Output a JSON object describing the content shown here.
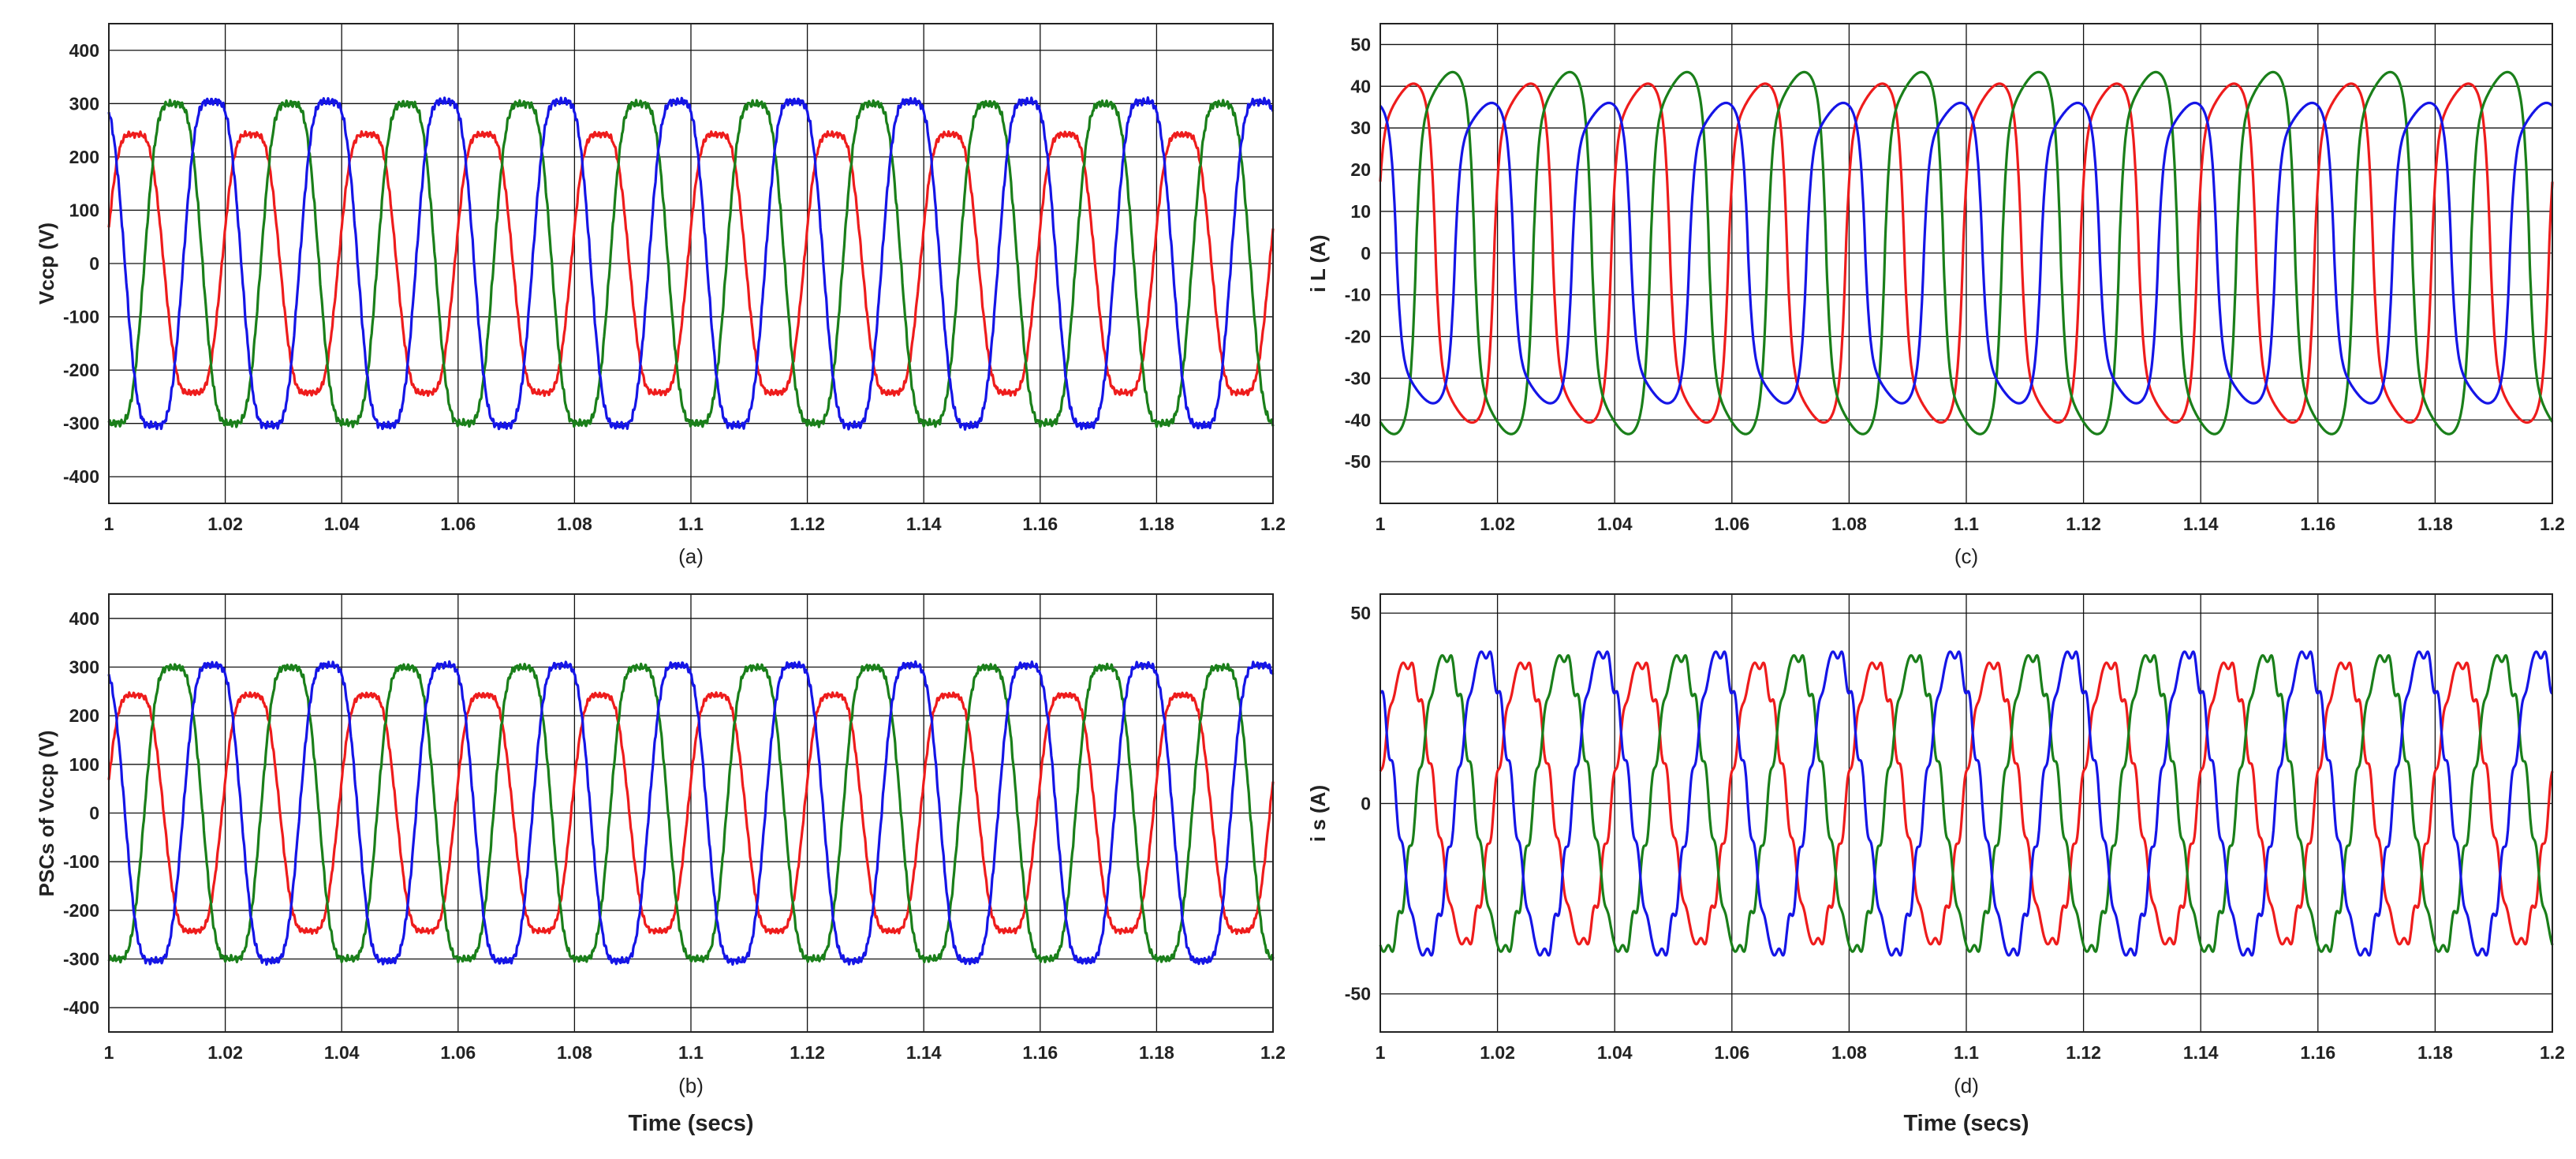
{
  "colors": {
    "phase_a": "#ee1c1c",
    "phase_b": "#1a7f1a",
    "phase_c": "#1515e6",
    "grid": "#111111",
    "axes": "#222222"
  },
  "chart_data": [
    {
      "id": "a",
      "type": "line",
      "caption": "(a)",
      "ylabel": "Vccp (V)",
      "xlabel": "",
      "xlim": [
        1,
        1.2
      ],
      "ylim": [
        -450,
        450
      ],
      "xticks": [
        1,
        1.02,
        1.04,
        1.06,
        1.08,
        1.1,
        1.12,
        1.14,
        1.16,
        1.18,
        1.2
      ],
      "xtick_labels": [
        "1",
        "1.02",
        "1.04",
        "1.06",
        "1.08",
        "1.1",
        "1.12",
        "1.14",
        "1.16",
        "1.18",
        "1.2"
      ],
      "yticks": [
        -400,
        -300,
        -200,
        -100,
        0,
        100,
        200,
        300,
        400
      ],
      "ytick_labels": [
        "-400",
        "-300",
        "-200",
        "-100",
        "0",
        "100",
        "200",
        "300",
        "400"
      ],
      "grid": true,
      "frequency_hz": 50,
      "waveform": "voltage",
      "series": [
        {
          "color": "#ee1c1c",
          "amplitude": 275,
          "phase_deg": 0
        },
        {
          "color": "#1a7f1a",
          "amplitude": 340,
          "phase_deg": -120
        },
        {
          "color": "#1515e6",
          "amplitude": 345,
          "phase_deg": 120
        }
      ]
    },
    {
      "id": "b",
      "type": "line",
      "caption": "(b)",
      "ylabel": "PSCs of Vccp (V)",
      "xlabel": "Time (secs)",
      "xlim": [
        1,
        1.2
      ],
      "ylim": [
        -450,
        450
      ],
      "xticks": [
        1,
        1.02,
        1.04,
        1.06,
        1.08,
        1.1,
        1.12,
        1.14,
        1.16,
        1.18,
        1.2
      ],
      "xtick_labels": [
        "1",
        "1.02",
        "1.04",
        "1.06",
        "1.08",
        "1.1",
        "1.12",
        "1.14",
        "1.16",
        "1.18",
        "1.2"
      ],
      "yticks": [
        -400,
        -300,
        -200,
        -100,
        0,
        100,
        200,
        300,
        400
      ],
      "ytick_labels": [
        "-400",
        "-300",
        "-200",
        "-100",
        "0",
        "100",
        "200",
        "300",
        "400"
      ],
      "grid": true,
      "frequency_hz": 50,
      "waveform": "voltage",
      "series": [
        {
          "color": "#ee1c1c",
          "amplitude": 275,
          "phase_deg": 0
        },
        {
          "color": "#1a7f1a",
          "amplitude": 340,
          "phase_deg": -120
        },
        {
          "color": "#1515e6",
          "amplitude": 345,
          "phase_deg": 120
        }
      ]
    },
    {
      "id": "c",
      "type": "line",
      "caption": "(c)",
      "ylabel": "i L (A)",
      "xlabel": "",
      "xlim": [
        1,
        1.2
      ],
      "ylim": [
        -60,
        55
      ],
      "xticks": [
        1,
        1.02,
        1.04,
        1.06,
        1.08,
        1.1,
        1.12,
        1.14,
        1.16,
        1.18,
        1.2
      ],
      "xtick_labels": [
        "1",
        "1.02",
        "1.04",
        "1.06",
        "1.08",
        "1.1",
        "1.12",
        "1.14",
        "1.16",
        "1.18",
        "1.2"
      ],
      "yticks": [
        -50,
        -40,
        -30,
        -20,
        -10,
        0,
        10,
        20,
        30,
        40,
        50
      ],
      "ytick_labels": [
        "-50",
        "-40",
        "-30",
        "-20",
        "-10",
        "0",
        "10",
        "20",
        "30",
        "40",
        "50"
      ],
      "grid": true,
      "frequency_hz": 50,
      "waveform": "load_current",
      "series": [
        {
          "color": "#ee1c1c",
          "amplitude": 44,
          "phase_deg": 0
        },
        {
          "color": "#1a7f1a",
          "amplitude": 47,
          "phase_deg": -120
        },
        {
          "color": "#1515e6",
          "amplitude": 39,
          "phase_deg": 120
        }
      ]
    },
    {
      "id": "d",
      "type": "line",
      "caption": "(d)",
      "ylabel": "i s (A)",
      "xlabel": "Time (secs)",
      "xlim": [
        1,
        1.2
      ],
      "ylim": [
        -60,
        55
      ],
      "xticks": [
        1,
        1.02,
        1.04,
        1.06,
        1.08,
        1.1,
        1.12,
        1.14,
        1.16,
        1.18,
        1.2
      ],
      "xtick_labels": [
        "1",
        "1.02",
        "1.04",
        "1.06",
        "1.08",
        "1.1",
        "1.12",
        "1.14",
        "1.16",
        "1.18",
        "1.2"
      ],
      "yticks": [
        -50,
        0,
        50
      ],
      "ytick_labels": [
        "-50",
        "0",
        "50"
      ],
      "grid": true,
      "frequency_hz": 50,
      "waveform": "source_current",
      "series": [
        {
          "color": "#ee1c1c",
          "amplitude": 38,
          "phase_deg": 0
        },
        {
          "color": "#1a7f1a",
          "amplitude": 40,
          "phase_deg": -120
        },
        {
          "color": "#1515e6",
          "amplitude": 41,
          "phase_deg": 120
        }
      ]
    }
  ]
}
